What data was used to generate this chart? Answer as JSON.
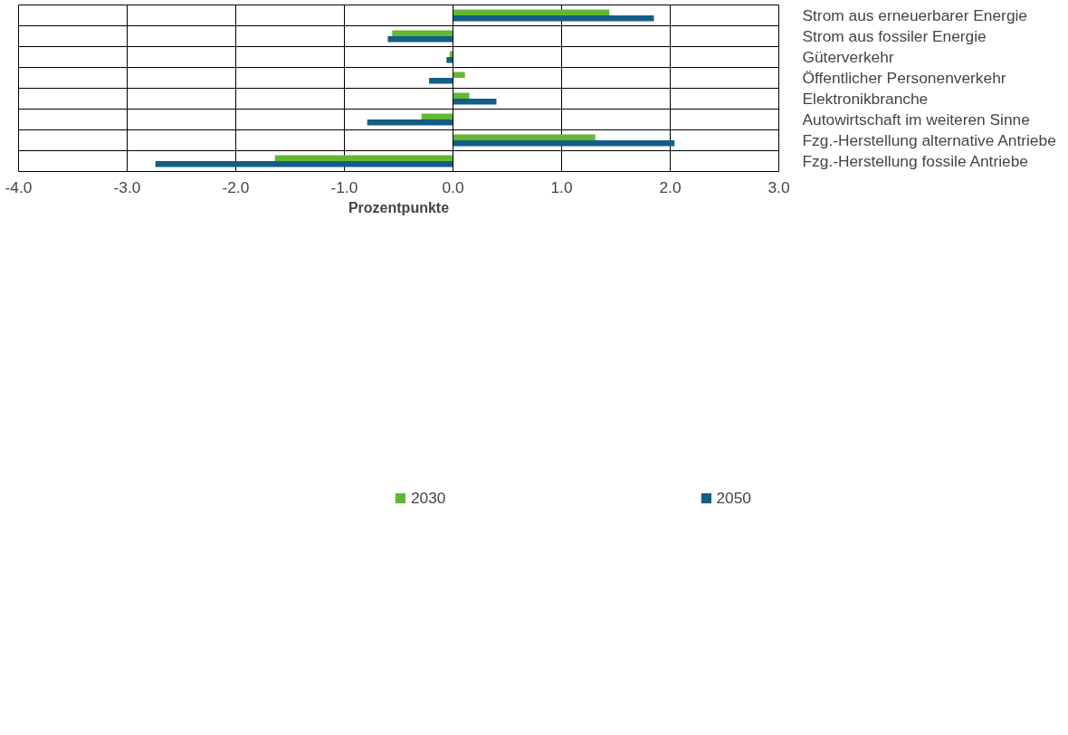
{
  "chart_data": {
    "type": "bar",
    "orientation": "horizontal",
    "xlabel": "Prozentpunkte",
    "categories": [
      "Strom aus erneuerbarer Energie",
      "Strom aus fossiler Energie",
      "Güterverkehr",
      "Öffentlicher Personenverkehr",
      "Elektronikbranche",
      "Autowirtschaft im weiteren Sinne",
      "Fzg.-Herstellung alternative Antriebe",
      "Fzg.-Herstellung fossile Antriebe"
    ],
    "series": [
      {
        "name": "2030",
        "color": "#62b832",
        "values": [
          1.44,
          -0.56,
          -0.03,
          0.11,
          0.15,
          -0.29,
          1.31,
          -1.64
        ]
      },
      {
        "name": "2050",
        "color": "#135e84",
        "values": [
          1.85,
          -0.6,
          -0.06,
          -0.22,
          0.4,
          -0.79,
          2.04,
          -2.74
        ]
      }
    ],
    "xlim": [
      -4,
      3
    ],
    "xticks": [
      {
        "value": -4,
        "label": "-4.0"
      },
      {
        "value": -3,
        "label": "-3.0"
      },
      {
        "value": -2,
        "label": "-2.0"
      },
      {
        "value": -1,
        "label": "-1.0"
      },
      {
        "value": 0,
        "label": "0.0"
      },
      {
        "value": 1,
        "label": "1.0"
      },
      {
        "value": 2,
        "label": "2.0"
      },
      {
        "value": 3,
        "label": "3.0"
      }
    ],
    "grid": true,
    "legend": "bottom"
  }
}
